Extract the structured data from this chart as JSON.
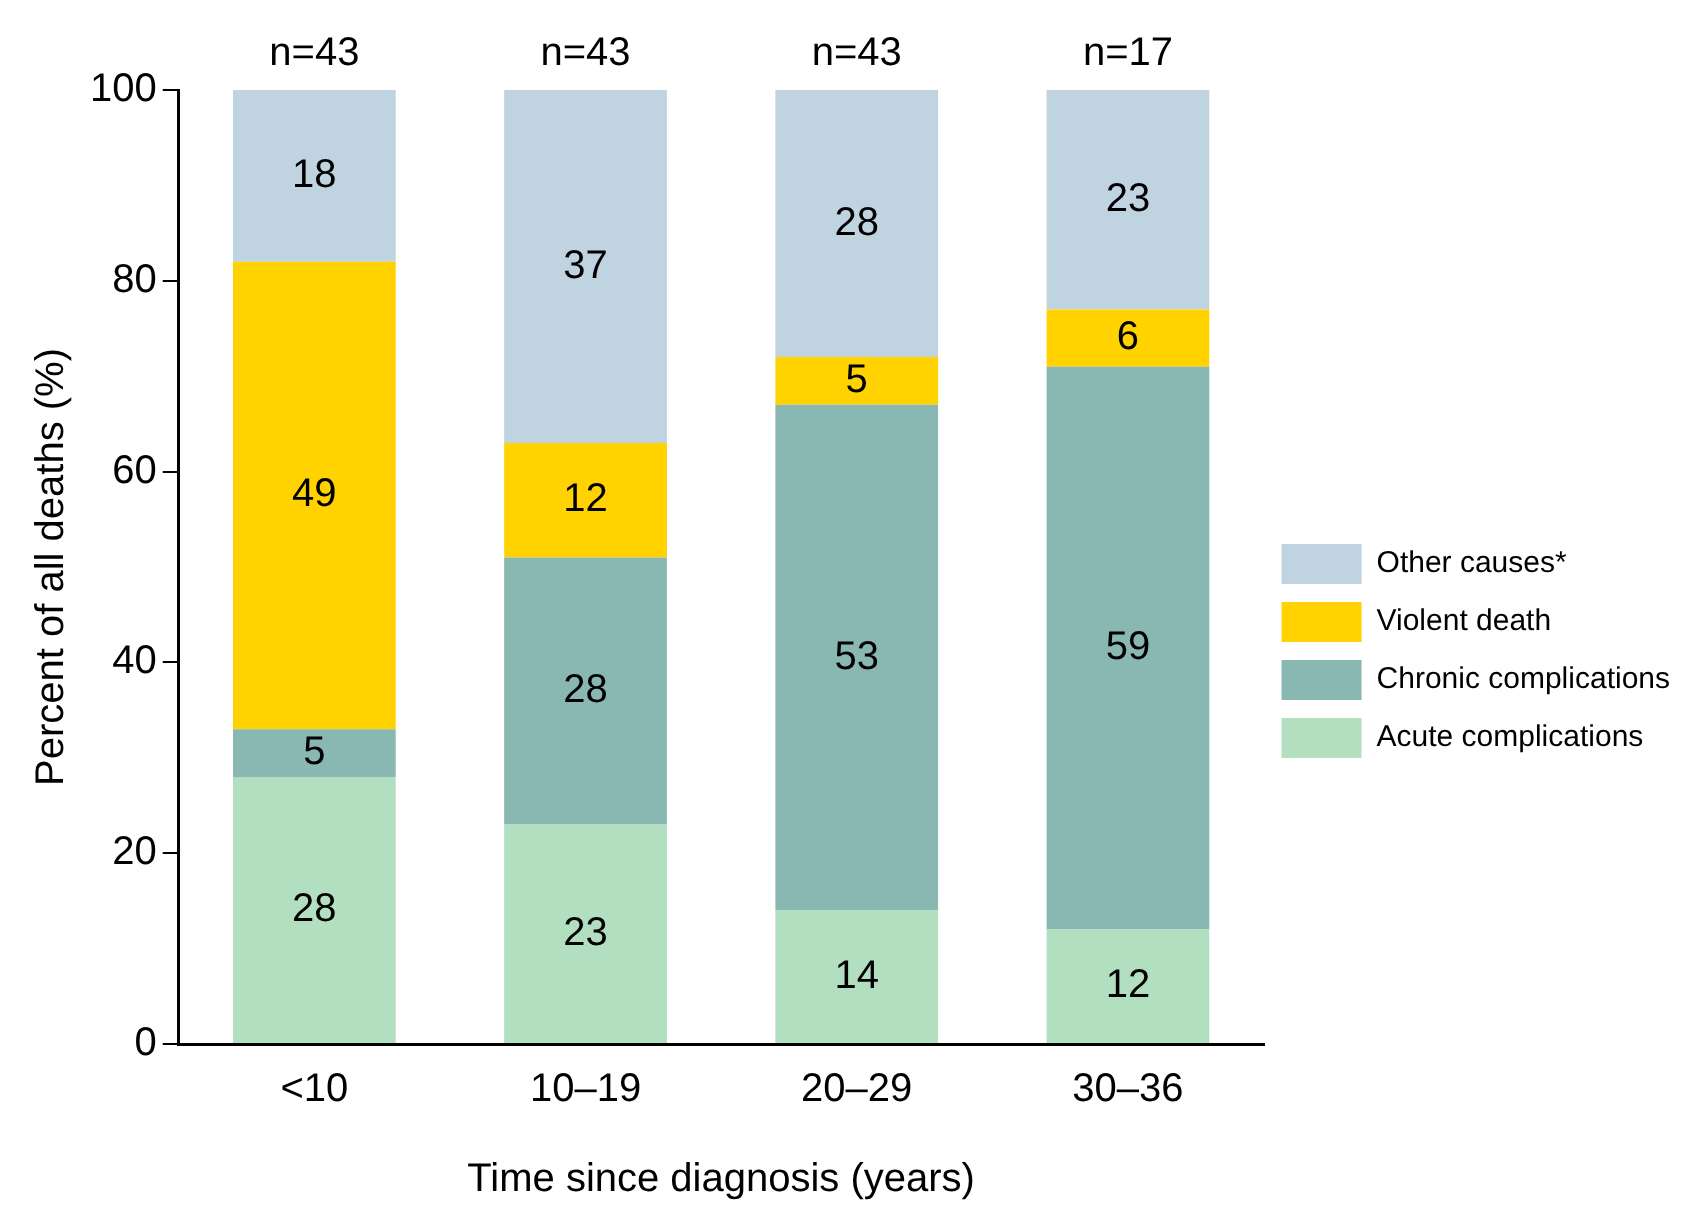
{
  "chart_data": {
    "type": "bar",
    "stacked": true,
    "xlabel": "Time since diagnosis (years)",
    "ylabel": "Percent of all deaths (%)",
    "categories": [
      "<10",
      "10–19",
      "20–29",
      "30–36"
    ],
    "series": [
      {
        "name": "Acute complications",
        "color": "#b1dfc0",
        "values": [
          28,
          23,
          14,
          12
        ]
      },
      {
        "name": "Chronic complications",
        "color": "#89b8b2",
        "values": [
          5,
          28,
          53,
          59
        ]
      },
      {
        "name": "Violent death",
        "color": "#ffd200",
        "values": [
          49,
          12,
          5,
          6
        ]
      },
      {
        "name": "Other causes*",
        "color": "#c0d3e1",
        "values": [
          18,
          37,
          28,
          23
        ]
      }
    ],
    "annotations": [
      "n=43",
      "n=43",
      "n=43",
      "n=17"
    ],
    "data_labels": true,
    "ylim": [
      0,
      100
    ],
    "yticks": [
      0,
      20,
      40,
      60,
      80,
      100
    ],
    "grid": false,
    "legend": "right"
  }
}
